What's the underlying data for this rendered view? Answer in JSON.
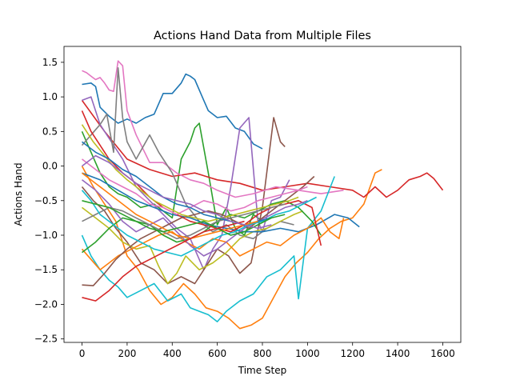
{
  "chart_data": {
    "type": "line",
    "title": "Actions Hand Data from Multiple Files",
    "xlabel": "Time Step",
    "ylabel": "Actions Hand",
    "xlim": [
      -80,
      1680
    ],
    "ylim": [
      -2.55,
      1.73
    ],
    "xticks": [
      0,
      200,
      400,
      600,
      800,
      1000,
      1200,
      1400,
      1600
    ],
    "yticks": [
      -2.5,
      -2.0,
      -1.5,
      -1.0,
      -0.5,
      0.0,
      0.5,
      1.0,
      1.5
    ],
    "xtick_labels": [
      "0",
      "200",
      "400",
      "600",
      "800",
      "1000",
      "1200",
      "1400",
      "1600"
    ],
    "ytick_labels": [
      "−2.5",
      "−2.0",
      "−1.5",
      "−1.0",
      "−0.5",
      "0.0",
      "0.5",
      "1.0",
      "1.5"
    ],
    "grid": false,
    "legend": "none",
    "colors": [
      "#1f77b4",
      "#ff7f0e",
      "#2ca02c",
      "#d62728",
      "#9467bd",
      "#8c564b",
      "#e377c2",
      "#7f7f7f",
      "#bcbd22",
      "#17becf"
    ],
    "series": [
      {
        "color": "#1f77b4",
        "x": [
          0,
          40,
          60,
          80,
          120,
          160,
          200,
          240,
          280,
          320,
          360,
          400,
          440,
          460,
          480,
          500,
          540,
          560,
          600,
          640,
          680,
          720,
          760,
          800
        ],
        "y": [
          1.18,
          1.2,
          1.15,
          0.85,
          0.72,
          0.62,
          0.68,
          0.62,
          0.7,
          0.75,
          1.05,
          1.05,
          1.2,
          1.33,
          1.3,
          1.25,
          0.95,
          0.8,
          0.7,
          0.72,
          0.55,
          0.5,
          0.32,
          0.25
        ]
      },
      {
        "color": "#ff7f0e",
        "x": [
          0,
          50,
          100,
          150,
          200,
          250,
          300,
          350,
          400,
          450,
          500,
          550,
          600,
          650,
          700,
          750,
          800,
          850,
          900,
          950,
          1000,
          1050,
          1100,
          1150,
          1200,
          1250,
          1300,
          1330
        ],
        "y": [
          0.0,
          -0.3,
          -0.55,
          -0.8,
          -1.3,
          -1.5,
          -1.8,
          -2.0,
          -1.9,
          -1.7,
          -1.85,
          -2.05,
          -2.1,
          -2.2,
          -2.35,
          -2.3,
          -2.2,
          -1.9,
          -1.6,
          -1.4,
          -1.25,
          -1.05,
          -0.9,
          -0.8,
          -0.75,
          -0.55,
          -0.1,
          -0.05
        ]
      },
      {
        "color": "#2ca02c",
        "x": [
          0,
          40,
          80,
          120,
          160,
          200,
          260,
          320,
          400,
          440,
          480,
          500,
          520,
          560,
          600,
          640,
          680,
          720,
          760,
          800,
          840
        ],
        "y": [
          0.5,
          0.2,
          -0.1,
          -0.3,
          -0.4,
          -0.45,
          -0.6,
          -0.55,
          -0.75,
          0.1,
          0.35,
          0.55,
          0.62,
          -0.1,
          -0.85,
          -0.6,
          -0.9,
          -1.0,
          -0.7,
          -0.8,
          -0.75
        ]
      },
      {
        "color": "#d62728",
        "x": [
          0,
          100,
          200,
          300,
          400,
          500,
          600,
          700,
          800,
          900,
          1000,
          1100,
          1200,
          1250,
          1300,
          1350,
          1400,
          1450,
          1500,
          1530,
          1560,
          1600
        ],
        "y": [
          0.95,
          0.5,
          0.1,
          -0.05,
          -0.15,
          -0.1,
          -0.2,
          -0.25,
          -0.35,
          -0.3,
          -0.25,
          -0.3,
          -0.35,
          -0.45,
          -0.3,
          -0.45,
          -0.35,
          -0.2,
          -0.15,
          -0.1,
          -0.18,
          -0.35
        ]
      },
      {
        "color": "#9467bd",
        "x": [
          0,
          40,
          80,
          120,
          180,
          240,
          300,
          360,
          420,
          480,
          540,
          580,
          620,
          660,
          700,
          740,
          780,
          800,
          840,
          880,
          920
        ],
        "y": [
          0.95,
          1.0,
          0.6,
          0.4,
          0.1,
          -0.3,
          -0.5,
          -0.7,
          -0.9,
          -1.05,
          -1.5,
          -1.2,
          -1.0,
          -0.3,
          0.55,
          0.7,
          -0.8,
          -0.95,
          -0.5,
          -0.45,
          -0.2
        ]
      },
      {
        "color": "#8c564b",
        "x": [
          0,
          50,
          100,
          150,
          200,
          260,
          320,
          380,
          440,
          500,
          560,
          600,
          650,
          700,
          750,
          800,
          850,
          880,
          900
        ],
        "y": [
          -0.3,
          -0.5,
          -0.65,
          -0.9,
          -1.1,
          -1.4,
          -1.5,
          -1.7,
          -1.6,
          -1.7,
          -1.4,
          -1.2,
          -1.3,
          -1.55,
          -1.4,
          -0.6,
          0.7,
          0.35,
          0.28
        ]
      },
      {
        "color": "#e377c2",
        "x": [
          0,
          20,
          40,
          60,
          80,
          100,
          120,
          140,
          160,
          180,
          200,
          240,
          300,
          360,
          420,
          480,
          540,
          600,
          680,
          760,
          860,
          960,
          1060,
          1160
        ],
        "y": [
          1.38,
          1.35,
          1.3,
          1.25,
          1.28,
          1.2,
          1.1,
          1.08,
          1.52,
          1.45,
          0.8,
          0.45,
          0.05,
          0.05,
          -0.1,
          -0.2,
          -0.25,
          -0.35,
          -0.45,
          -0.4,
          -0.3,
          -0.35,
          -0.4,
          -0.35
        ]
      },
      {
        "color": "#7f7f7f",
        "x": [
          0,
          40,
          80,
          110,
          140,
          160,
          180,
          200,
          240,
          300,
          340,
          400,
          460,
          520,
          580,
          640,
          700,
          760,
          820,
          880,
          940
        ],
        "y": [
          0.3,
          0.45,
          0.6,
          0.75,
          0.2,
          1.42,
          0.7,
          0.35,
          0.1,
          0.45,
          0.2,
          -0.1,
          -0.55,
          -0.8,
          -0.95,
          -0.85,
          -1.0,
          -1.05,
          -0.9,
          -0.8,
          -0.85
        ]
      },
      {
        "color": "#bcbd22",
        "x": [
          0,
          60,
          120,
          180,
          240,
          300,
          340,
          380,
          420,
          460,
          520,
          580,
          640,
          700,
          760,
          820,
          880,
          940,
          980
        ],
        "y": [
          -0.6,
          -0.75,
          -0.9,
          -1.1,
          -1.2,
          -1.15,
          -1.45,
          -1.7,
          -1.55,
          -1.3,
          -1.5,
          -1.4,
          -1.25,
          -1.05,
          -0.95,
          -0.9,
          -0.8,
          -0.7,
          -0.65
        ]
      },
      {
        "color": "#17becf",
        "x": [
          0,
          40,
          80,
          120,
          160,
          200,
          260,
          320,
          380,
          440,
          480,
          520,
          560,
          600,
          640,
          700,
          760,
          820,
          880,
          940,
          960,
          1000,
          1060,
          1120
        ],
        "y": [
          -1.0,
          -1.3,
          -1.5,
          -1.65,
          -1.75,
          -1.9,
          -1.8,
          -1.7,
          -1.95,
          -1.85,
          -2.05,
          -2.1,
          -2.15,
          -2.25,
          -2.1,
          -1.95,
          -1.85,
          -1.6,
          -1.5,
          -1.3,
          -1.92,
          -0.9,
          -0.65,
          -0.15
        ]
      },
      {
        "color": "#1f77b4",
        "x": [
          0,
          80,
          160,
          240,
          320,
          400,
          480,
          560,
          640,
          720,
          800,
          880,
          960,
          1040,
          1120,
          1180,
          1230
        ],
        "y": [
          -0.1,
          -0.2,
          -0.35,
          -0.5,
          -0.6,
          -0.7,
          -0.75,
          -0.85,
          -0.9,
          -0.95,
          -0.95,
          -0.9,
          -0.95,
          -0.85,
          -0.7,
          -0.75,
          -0.88
        ]
      },
      {
        "color": "#ff7f0e",
        "x": [
          0,
          40,
          80,
          120,
          160,
          220,
          280,
          340,
          400,
          460,
          520,
          580,
          640,
          700,
          760,
          820,
          880,
          940,
          1000,
          1060,
          1100,
          1140,
          1160
        ],
        "y": [
          -1.2,
          -1.35,
          -1.5,
          -1.4,
          -1.3,
          -1.2,
          -1.1,
          -1.0,
          -0.95,
          -1.1,
          -1.2,
          -1.05,
          -1.1,
          -1.3,
          -1.2,
          -1.1,
          -1.15,
          -1.0,
          -0.9,
          -0.75,
          -0.95,
          -1.05,
          -0.75
        ]
      },
      {
        "color": "#2ca02c",
        "x": [
          0,
          60,
          120,
          180,
          240,
          300,
          360,
          420,
          480,
          540,
          600,
          660,
          720,
          780,
          840,
          900,
          960,
          1020,
          1060
        ],
        "y": [
          -1.25,
          -1.1,
          -0.9,
          -0.75,
          -0.8,
          -0.85,
          -1.0,
          -1.1,
          -1.05,
          -0.95,
          -0.8,
          -0.7,
          -0.75,
          -0.65,
          -0.55,
          -0.5,
          -0.6,
          -0.8,
          -1.0
        ]
      },
      {
        "color": "#d62728",
        "x": [
          0,
          40,
          80,
          120,
          180,
          240,
          300,
          360,
          420,
          480,
          540,
          600,
          660,
          720,
          780,
          840,
          900,
          960,
          1020,
          1060
        ],
        "y": [
          0.8,
          0.5,
          0.3,
          0.1,
          -0.1,
          -0.25,
          -0.45,
          -0.6,
          -0.7,
          -0.8,
          -0.85,
          -0.9,
          -0.95,
          -0.85,
          -0.7,
          -0.6,
          -0.55,
          -0.5,
          -0.6,
          -1.15
        ]
      },
      {
        "color": "#9467bd",
        "x": [
          0,
          60,
          120,
          180,
          240,
          300,
          360,
          420,
          480,
          540,
          600,
          660,
          720,
          780,
          840,
          900,
          960,
          1000
        ],
        "y": [
          -0.2,
          -0.35,
          -0.55,
          -0.8,
          -0.95,
          -0.85,
          -0.75,
          -0.95,
          -1.15,
          -1.3,
          -1.2,
          -1.05,
          -0.9,
          -0.8,
          -0.7,
          -0.6,
          -0.55,
          -0.5
        ]
      },
      {
        "color": "#8c564b",
        "x": [
          0,
          50,
          100,
          150,
          200,
          260,
          320,
          380,
          440,
          500,
          560,
          620,
          680,
          740,
          800,
          860,
          920,
          980,
          1030
        ],
        "y": [
          -1.72,
          -1.73,
          -1.55,
          -1.35,
          -1.2,
          -1.05,
          -0.95,
          -0.85,
          -0.75,
          -0.7,
          -0.65,
          -0.7,
          -0.8,
          -0.9,
          -0.75,
          -0.6,
          -0.45,
          -0.3,
          -0.15
        ]
      },
      {
        "color": "#e377c2",
        "x": [
          0,
          60,
          120,
          180,
          240,
          300,
          360,
          420,
          480,
          540,
          600,
          660,
          720,
          780,
          840,
          900,
          960,
          1000
        ],
        "y": [
          0.1,
          -0.05,
          -0.2,
          -0.3,
          -0.4,
          -0.55,
          -0.6,
          -0.7,
          -0.6,
          -0.5,
          -0.55,
          -0.65,
          -0.6,
          -0.5,
          -0.45,
          -0.4,
          -0.35,
          -0.3
        ]
      },
      {
        "color": "#7f7f7f",
        "x": [
          0,
          60,
          120,
          180,
          240,
          300,
          360,
          420,
          480,
          540,
          600,
          660,
          720,
          780,
          840,
          900
        ],
        "y": [
          -0.8,
          -0.7,
          -0.6,
          -0.65,
          -0.75,
          -0.85,
          -0.95,
          -1.05,
          -1.0,
          -0.9,
          -0.8,
          -0.75,
          -0.7,
          -0.65,
          -0.6,
          -0.55
        ]
      },
      {
        "color": "#bcbd22",
        "x": [
          0,
          50,
          100,
          150,
          200,
          260,
          320,
          380,
          440,
          500,
          560,
          620,
          680,
          740,
          800,
          860,
          920,
          960
        ],
        "y": [
          0.6,
          0.35,
          0.15,
          -0.05,
          -0.2,
          -0.35,
          -0.5,
          -0.6,
          -0.7,
          -0.75,
          -0.8,
          -0.75,
          -0.7,
          -0.65,
          -0.6,
          -0.55,
          -0.5,
          -0.45
        ]
      },
      {
        "color": "#17becf",
        "x": [
          0,
          40,
          80,
          140,
          200,
          260,
          320,
          380,
          440,
          500,
          560,
          620,
          680,
          740,
          800,
          860,
          920,
          980,
          1040
        ],
        "y": [
          -0.35,
          -0.5,
          -0.7,
          -0.85,
          -1.0,
          -1.1,
          -1.2,
          -1.25,
          -1.3,
          -1.2,
          -1.1,
          -1.0,
          -0.95,
          -0.85,
          -0.8,
          -0.7,
          -0.65,
          -0.55,
          -0.45
        ]
      },
      {
        "color": "#1f77b4",
        "x": [
          0,
          60,
          120,
          180,
          240,
          300,
          360,
          420,
          480,
          540,
          600,
          660,
          720,
          780,
          840
        ],
        "y": [
          0.35,
          0.2,
          0.1,
          -0.05,
          -0.15,
          -0.3,
          -0.45,
          -0.55,
          -0.6,
          -0.7,
          -0.75,
          -0.8,
          -0.85,
          -0.8,
          -0.75
        ]
      },
      {
        "color": "#ff7f0e",
        "x": [
          0,
          60,
          120,
          180,
          240,
          300,
          360,
          420,
          480,
          540,
          600,
          660,
          720,
          780
        ],
        "y": [
          -0.1,
          -0.25,
          -0.4,
          -0.55,
          -0.7,
          -0.8,
          -0.9,
          -1.0,
          -1.05,
          -1.0,
          -0.95,
          -0.9,
          -0.85,
          -0.8
        ]
      },
      {
        "color": "#2ca02c",
        "x": [
          0,
          60,
          120,
          180,
          240,
          300,
          360,
          420,
          480,
          540,
          600,
          660,
          720,
          780,
          840,
          900
        ],
        "y": [
          -0.5,
          -0.55,
          -0.6,
          -0.7,
          -0.8,
          -0.9,
          -0.95,
          -0.9,
          -0.85,
          -0.8,
          -0.9,
          -1.0,
          -0.95,
          -0.85,
          -0.75,
          -0.7
        ]
      },
      {
        "color": "#d62728",
        "x": [
          0,
          60,
          120,
          180,
          240,
          300,
          360,
          420,
          480,
          540,
          600,
          660,
          720
        ],
        "y": [
          -1.9,
          -1.95,
          -1.8,
          -1.6,
          -1.45,
          -1.35,
          -1.25,
          -1.15,
          -1.05,
          -0.95,
          -0.9,
          -0.85,
          -0.8
        ]
      },
      {
        "color": "#9467bd",
        "x": [
          0,
          60,
          120,
          180,
          240,
          300,
          360,
          420,
          480,
          540,
          600,
          660,
          720,
          780,
          840
        ],
        "y": [
          0.0,
          0.15,
          0.05,
          -0.1,
          -0.25,
          -0.35,
          -0.45,
          -0.5,
          -0.55,
          -0.65,
          -0.7,
          -0.8,
          -0.85,
          -0.9,
          -0.85
        ]
      }
    ]
  }
}
